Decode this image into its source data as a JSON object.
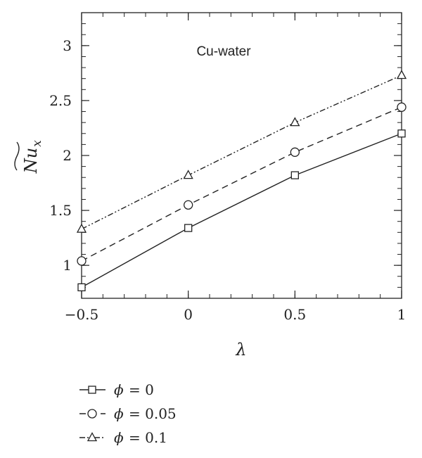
{
  "chart_data": {
    "type": "line",
    "annotation": "Cu-water",
    "xlabel": "λ",
    "ylabel": {
      "base": "Nu",
      "sub": "x"
    },
    "x": [
      -0.5,
      0,
      0.5,
      1
    ],
    "xlim": [
      -0.5,
      1
    ],
    "ylim": [
      0.7,
      3.3
    ],
    "xticks": [
      -0.5,
      0,
      0.5,
      1
    ],
    "xtick_labels": [
      "−0.5",
      "0",
      "0.5",
      "1"
    ],
    "yticks": [
      1,
      1.5,
      2,
      2.5,
      3
    ],
    "ytick_labels": [
      "1",
      "1.5",
      "2",
      "2.5",
      "3"
    ],
    "grid": false,
    "legend_position": "below",
    "series": [
      {
        "name": "= 0",
        "symbol": "ϕ",
        "values": [
          0.8,
          1.34,
          1.82,
          2.2
        ],
        "marker": "square",
        "dash": "solid",
        "color": "#222222"
      },
      {
        "name": "= 0.05",
        "symbol": "ϕ",
        "values": [
          1.04,
          1.55,
          2.03,
          2.44
        ],
        "marker": "circle",
        "dash": "dashed",
        "color": "#222222"
      },
      {
        "name": "= 0.1",
        "symbol": "ϕ",
        "values": [
          1.33,
          1.82,
          2.3,
          2.73
        ],
        "marker": "triangle",
        "dash": "dashdotdot",
        "color": "#222222"
      }
    ]
  }
}
